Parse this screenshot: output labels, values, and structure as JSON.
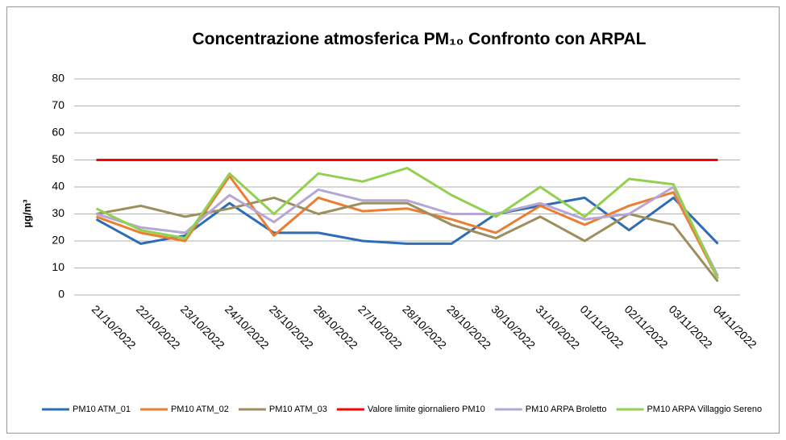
{
  "chart_data": {
    "type": "line",
    "title": "Concentrazione atmosferica PM₁₀ Confronto con ARPAL",
    "y_label": "µg/m³",
    "categories": [
      "21/10/2022",
      "22/10/2022",
      "23/10/2022",
      "24/10/2022",
      "25/10/2022",
      "26/10/2022",
      "27/10/2022",
      "28/10/2022",
      "29/10/2022",
      "30/10/2022",
      "31/10/2022",
      "01/11/2022",
      "02/11/2022",
      "03/11/2022",
      "04/11/2022"
    ],
    "series": [
      {
        "name": "PM10 ATM_01",
        "color": "#2e6db4",
        "values": [
          28,
          19,
          22,
          34,
          23,
          23,
          20,
          19,
          19,
          30,
          33,
          36,
          24,
          36,
          19
        ]
      },
      {
        "name": "PM10 ATM_02",
        "color": "#ed7d31",
        "values": [
          29,
          23,
          20,
          44,
          22,
          36,
          31,
          32,
          28,
          23,
          33,
          26,
          33,
          38,
          6
        ]
      },
      {
        "name": "PM10 ATM_03",
        "color": "#9e8e5e",
        "values": [
          30,
          33,
          29,
          32,
          36,
          30,
          34,
          34,
          26,
          21,
          29,
          20,
          30,
          26,
          5
        ]
      },
      {
        "name": "Valore limite giornaliero PM10",
        "color": "#ff0000",
        "values": [
          50,
          50,
          50,
          50,
          50,
          50,
          50,
          50,
          50,
          50,
          50,
          50,
          50,
          50,
          50
        ]
      },
      {
        "name": "PM10 ARPA Broletto",
        "color": "#b4a7d6",
        "values": [
          30,
          25,
          23,
          37,
          27,
          39,
          35,
          35,
          30,
          30,
          34,
          28,
          30,
          40,
          7
        ]
      },
      {
        "name": "PM10 ARPA Villaggio Sereno",
        "color": "#92d050",
        "values": [
          32,
          24,
          21,
          45,
          30,
          45,
          42,
          47,
          37,
          29,
          40,
          29,
          43,
          41,
          6
        ]
      }
    ],
    "ylim": [
      0,
      80
    ],
    "yticks": [
      0,
      10,
      20,
      30,
      40,
      50,
      60,
      70,
      80
    ],
    "grid": true,
    "legend": "bottom"
  }
}
